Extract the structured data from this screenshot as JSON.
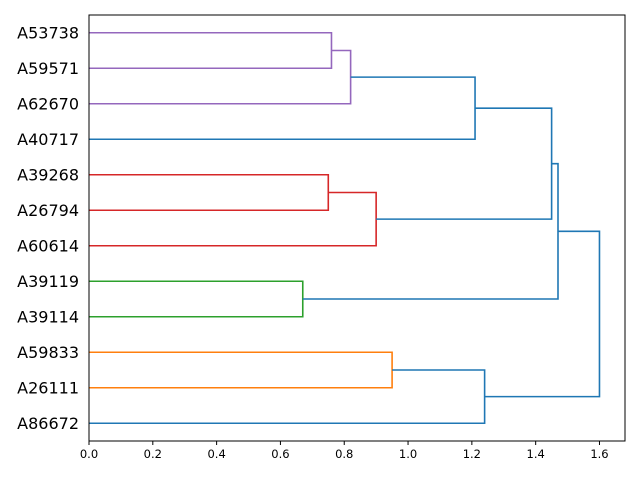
{
  "chart_data": {
    "type": "dendrogram",
    "orientation": "left",
    "title": "",
    "xlabel": "",
    "ylabel": "",
    "xlim": [
      0,
      1.68
    ],
    "xticks": [
      0.0,
      0.2,
      0.4,
      0.6,
      0.8,
      1.0,
      1.2,
      1.4,
      1.6
    ],
    "xtick_labels": [
      "0.0",
      "0.2",
      "0.4",
      "0.6",
      "0.8",
      "1.0",
      "1.2",
      "1.4",
      "1.6"
    ],
    "leaves": [
      "A53738",
      "A59571",
      "A62670",
      "A40717",
      "A39268",
      "A26794",
      "A60614",
      "A39119",
      "A39114",
      "A59833",
      "A26111",
      "A86672"
    ],
    "colors": {
      "purple": "#9467bd",
      "red": "#d62728",
      "green": "#2ca02c",
      "orange": "#ff7f0e",
      "blue": "#1f77b4"
    },
    "merges": [
      {
        "id": "m1",
        "left": "A53738",
        "right": "A59571",
        "height": 0.76,
        "color": "purple"
      },
      {
        "id": "m2",
        "left": "m1",
        "right": "A62670",
        "height": 0.82,
        "color": "purple"
      },
      {
        "id": "m3",
        "left": "m2",
        "right": "A40717",
        "height": 1.21,
        "color": "blue"
      },
      {
        "id": "m4",
        "left": "A39268",
        "right": "A26794",
        "height": 0.75,
        "color": "red"
      },
      {
        "id": "m5",
        "left": "m4",
        "right": "A60614",
        "height": 0.9,
        "color": "red"
      },
      {
        "id": "m6",
        "left": "m3",
        "right": "m5",
        "height": 1.45,
        "color": "blue"
      },
      {
        "id": "m7",
        "left": "A39119",
        "right": "A39114",
        "height": 0.67,
        "color": "green"
      },
      {
        "id": "m8",
        "left": "m6",
        "right": "m7",
        "height": 1.47,
        "color": "blue"
      },
      {
        "id": "m9",
        "left": "A59833",
        "right": "A26111",
        "height": 0.95,
        "color": "orange"
      },
      {
        "id": "m10",
        "left": "m9",
        "right": "A86672",
        "height": 1.24,
        "color": "blue"
      },
      {
        "id": "m11",
        "left": "m8",
        "right": "m10",
        "height": 1.6,
        "color": "blue"
      }
    ]
  }
}
